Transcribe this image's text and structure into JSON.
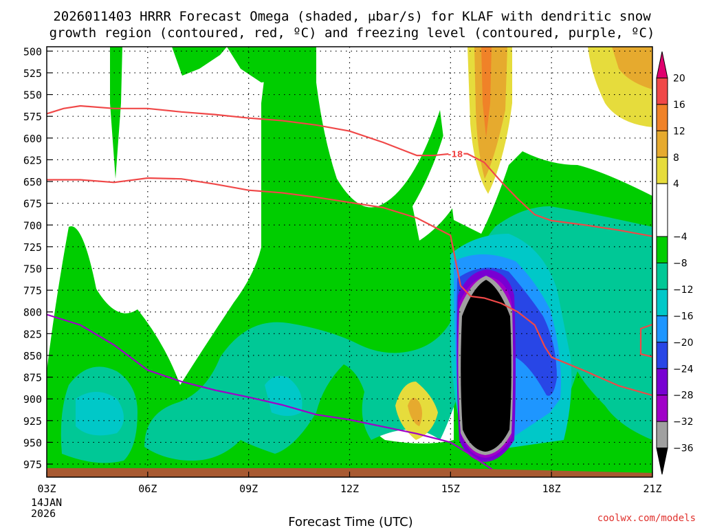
{
  "chart_data": {
    "type": "contour-time-height",
    "title_line1": "2026011403 HRRR Forecast Omega (shaded, μbar/s) for KLAF with dendritic snow",
    "title_line2": "growth region (contoured, red, ºC) and freezing level (contoured, purple, ºC)",
    "xlabel": "Forecast Time (UTC)",
    "x_ticks": [
      "03Z",
      "06Z",
      "09Z",
      "12Z",
      "15Z",
      "18Z",
      "21Z"
    ],
    "x_tick_hours": [
      3,
      6,
      9,
      12,
      15,
      18,
      21
    ],
    "x_date_line1": "14JAN",
    "x_date_line2": "2026",
    "xlim": [
      3,
      21
    ],
    "y_ticks": [
      500,
      525,
      550,
      575,
      600,
      625,
      650,
      675,
      700,
      725,
      750,
      775,
      800,
      825,
      850,
      875,
      900,
      925,
      950,
      975
    ],
    "ylim": [
      495,
      990
    ],
    "y_reversed": true,
    "grid": true,
    "colorbar": {
      "labels": [
        "20",
        "16",
        "12",
        "8",
        "4",
        "−4",
        "−8",
        "−12",
        "−16",
        "−20",
        "−24",
        "−28",
        "−32",
        "−36"
      ],
      "label_values": [
        20,
        16,
        12,
        8,
        4,
        -4,
        -8,
        -12,
        -16,
        -20,
        -24,
        -28,
        -32,
        -36
      ],
      "bands": [
        {
          "from": 20,
          "to": 24,
          "color": "#e0006e"
        },
        {
          "from": 16,
          "to": 20,
          "color": "#f04848"
        },
        {
          "from": 12,
          "to": 16,
          "color": "#f08228"
        },
        {
          "from": 8,
          "to": 12,
          "color": "#e6aa2e"
        },
        {
          "from": 4,
          "to": 8,
          "color": "#e6dc3c"
        },
        {
          "from": -4,
          "to": 4,
          "color": "#ffffff"
        },
        {
          "from": -8,
          "to": -4,
          "color": "#00cd00"
        },
        {
          "from": -12,
          "to": -8,
          "color": "#00c896"
        },
        {
          "from": -16,
          "to": -12,
          "color": "#00c8c8"
        },
        {
          "from": -20,
          "to": -16,
          "color": "#1e96ff"
        },
        {
          "from": -24,
          "to": -20,
          "color": "#2846e6"
        },
        {
          "from": -28,
          "to": -24,
          "color": "#7800d2"
        },
        {
          "from": -32,
          "to": -28,
          "color": "#a000c8"
        },
        {
          "from": -36,
          "to": -32,
          "color": "#a0a0a0"
        },
        {
          "from": -40,
          "to": -36,
          "color": "#000000"
        }
      ]
    },
    "contour_label": "-18",
    "contour_label_at": {
      "hour": 15.0,
      "pressure": 618
    },
    "dendritic_top_minus18": {
      "hours": [
        3,
        3.5,
        4,
        5,
        6,
        7,
        8,
        9,
        10,
        11,
        12,
        13,
        14,
        14.5,
        15,
        15.5,
        16,
        16.5,
        17,
        17.5,
        18,
        19,
        20,
        21
      ],
      "pressure": [
        572,
        566,
        563,
        566,
        566,
        570,
        573,
        577,
        580,
        585,
        592,
        605,
        620,
        620,
        618,
        618,
        628,
        650,
        670,
        688,
        695,
        700,
        706,
        713
      ]
    },
    "dendritic_bottom_minus12": {
      "hours": [
        3,
        4,
        5,
        6,
        7,
        8,
        9,
        10,
        11,
        12,
        13,
        14,
        15,
        15.3,
        15.6,
        16,
        16.5,
        17,
        17.5,
        17.8,
        18,
        19,
        20,
        21
      ],
      "pressure": [
        648,
        648,
        651,
        646,
        647,
        653,
        660,
        663,
        668,
        674,
        680,
        692,
        712,
        770,
        782,
        784,
        790,
        800,
        815,
        840,
        852,
        868,
        885,
        896
      ]
    },
    "freezing_level_0C": {
      "hours": [
        3,
        4,
        5,
        6,
        7,
        8,
        9,
        10,
        11,
        12,
        13,
        14,
        15,
        15.5,
        16,
        16.5
      ],
      "pressure": [
        803,
        815,
        838,
        867,
        880,
        890,
        898,
        907,
        918,
        924,
        932,
        940,
        950,
        962,
        975,
        988
      ]
    },
    "ground_pressure": 982,
    "ground_color": "#a85a32",
    "contour_red": "#f04848",
    "contour_purple": "#a000c8"
  },
  "credit": "coolwx.com/models"
}
